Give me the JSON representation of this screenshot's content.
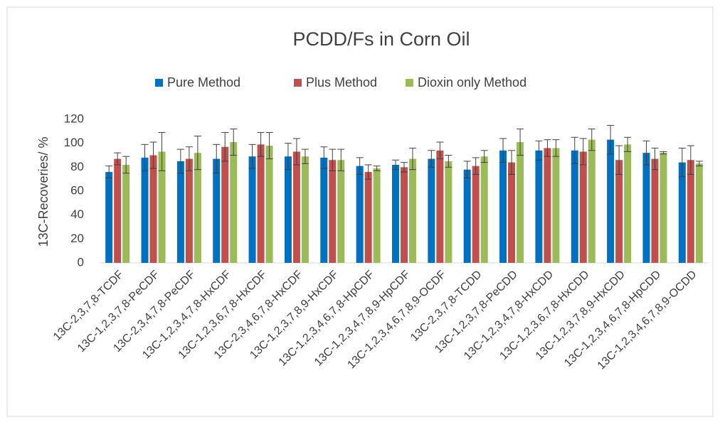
{
  "chart_data": {
    "type": "bar",
    "title": "PCDD/Fs in Corn Oil",
    "y_label": "13C-Recoveries/ %",
    "categories": [
      "13C-2,3,7,8-TCDF",
      "13C-1,2,3,7,8-PeCDF",
      "13C-2,3,4,7,8-PeCDF",
      "13C-1,2,3,4,7,8-HxCDF",
      "13C-1,2,3,6,7,8-HxCDF",
      "13C-2,3,4,6,7,8-HxCDF",
      "13C-1,2,3,7,8,9-HxCDF",
      "13C-1,2,3,4,6,7,8-HpCDF",
      "13C-1,2,3,4,7,8,9-HpCDF",
      "13C-1,2,3,4,6,7,8,9-OCDF",
      "13C-2,3,7,8-TCDD",
      "13C-1,2,3,7,8-PeCDD",
      "13C-1,2,3,4,7,8-HxCDD",
      "13C-1,2,3,6,7,8-HxCDD",
      "13C-1,2,3,7,8,9-HxCDD",
      "13C-1,2,3,4,6,7,8-HpCDD",
      "13C-1,2,3,4,6,7,8,9-OCDD"
    ],
    "series": [
      {
        "name": "Pure Method",
        "color": "#0070c0",
        "values": [
          76,
          88,
          85,
          87,
          89,
          89,
          88,
          81,
          82,
          87,
          78,
          94,
          94,
          94,
          103,
          92,
          84
        ],
        "errors": [
          5,
          11,
          10,
          12,
          10,
          11,
          9,
          7,
          4,
          7,
          7,
          10,
          8,
          11,
          12,
          10,
          12
        ]
      },
      {
        "name": "Plus Method",
        "color": "#c0504d",
        "values": [
          87,
          90,
          87,
          97,
          99,
          93,
          86,
          76,
          80,
          94,
          81,
          84,
          96,
          93,
          86,
          87,
          86
        ],
        "errors": [
          5,
          11,
          10,
          12,
          10,
          11,
          9,
          6,
          4,
          7,
          7,
          10,
          7,
          11,
          12,
          9,
          12
        ]
      },
      {
        "name": "Dioxin only Method",
        "color": "#9bbb59",
        "values": [
          82,
          93,
          92,
          101,
          98,
          89,
          86,
          79,
          87,
          85,
          89,
          101,
          96,
          103,
          99,
          92,
          83
        ],
        "errors": [
          7,
          16,
          14,
          11,
          11,
          6,
          9,
          2,
          9,
          5,
          5,
          11,
          7,
          9,
          6,
          1,
          2
        ]
      }
    ],
    "ylim": [
      0,
      120
    ],
    "yticks": [
      0,
      20,
      40,
      60,
      80,
      100,
      120
    ],
    "grid": false
  }
}
